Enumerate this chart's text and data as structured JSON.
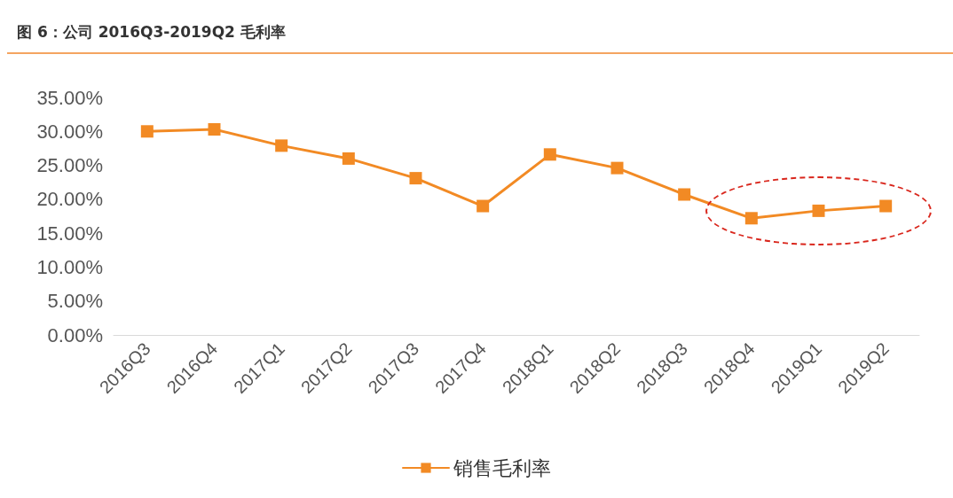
{
  "chart_data": {
    "type": "line",
    "title": "图 6：公司 2016Q3-2019Q2 毛利率",
    "categories": [
      "2016Q3",
      "2016Q4",
      "2017Q1",
      "2017Q2",
      "2017Q3",
      "2017Q4",
      "2018Q1",
      "2018Q2",
      "2018Q3",
      "2018Q4",
      "2019Q1",
      "2019Q2"
    ],
    "series": [
      {
        "name": "销售毛利率",
        "color": "#f28a24",
        "values": [
          30.0,
          30.3,
          27.9,
          26.0,
          23.1,
          19.0,
          26.6,
          24.6,
          20.7,
          17.2,
          18.3,
          19.0
        ]
      }
    ],
    "ylim": [
      0,
      35
    ],
    "yticks": [
      {
        "value": 0,
        "label": "0.00%"
      },
      {
        "value": 5,
        "label": "5.00%"
      },
      {
        "value": 10,
        "label": "10.00%"
      },
      {
        "value": 15,
        "label": "15.00%"
      },
      {
        "value": 20,
        "label": "20.00%"
      },
      {
        "value": 25,
        "label": "25.00%"
      },
      {
        "value": 30,
        "label": "30.00%"
      },
      {
        "value": 35,
        "label": "35.00%"
      }
    ],
    "grid": false,
    "legend": "bottom",
    "marker": "square",
    "line_style": "solid"
  }
}
